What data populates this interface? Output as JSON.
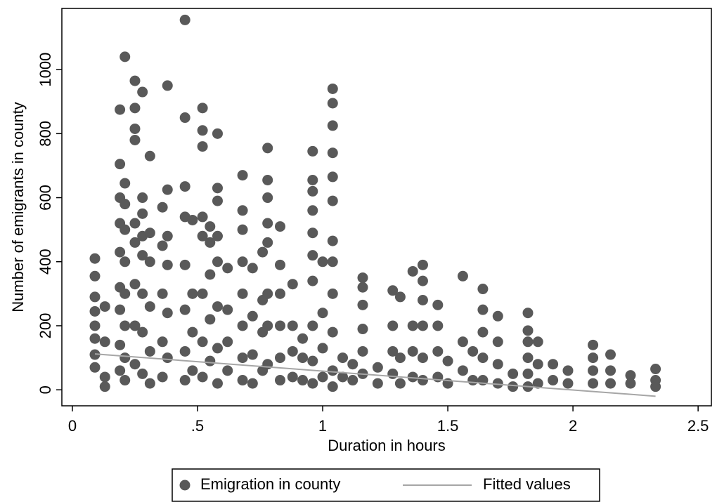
{
  "chart_data": {
    "type": "scatter",
    "xlabel": "Duration in hours",
    "ylabel": "Number of emigrants in county",
    "xlim": [
      -0.042,
      2.553
    ],
    "ylim": [
      -50,
      1191
    ],
    "xticks": [
      0,
      {
        "value": 0.5,
        "label": ".5"
      },
      1,
      {
        "value": 1.5,
        "label": "1.5"
      },
      2,
      {
        "value": 2.5,
        "label": "2.5"
      }
    ],
    "yticks": [
      0,
      200,
      400,
      600,
      800,
      1000
    ],
    "legend": "bottom",
    "series": [
      {
        "name": "Emigration in county",
        "color": "#595959",
        "mode": "markers",
        "x": [
          0.09,
          0.09,
          0.09,
          0.09,
          0.09,
          0.09,
          0.09,
          0.09,
          0.13,
          0.13,
          0.13,
          0.13,
          0.19,
          0.19,
          0.19,
          0.19,
          0.19,
          0.19,
          0.19,
          0.19,
          0.19,
          0.21,
          0.21,
          0.21,
          0.21,
          0.21,
          0.21,
          0.21,
          0.21,
          0.21,
          0.25,
          0.25,
          0.25,
          0.25,
          0.25,
          0.25,
          0.25,
          0.25,
          0.25,
          0.28,
          0.28,
          0.28,
          0.28,
          0.28,
          0.28,
          0.28,
          0.28,
          0.31,
          0.31,
          0.31,
          0.31,
          0.31,
          0.31,
          0.36,
          0.36,
          0.36,
          0.36,
          0.36,
          0.38,
          0.38,
          0.38,
          0.38,
          0.38,
          0.38,
          0.45,
          0.45,
          0.45,
          0.45,
          0.45,
          0.45,
          0.45,
          0.45,
          0.48,
          0.48,
          0.48,
          0.48,
          0.52,
          0.52,
          0.52,
          0.52,
          0.52,
          0.52,
          0.52,
          0.52,
          0.55,
          0.55,
          0.55,
          0.55,
          0.55,
          0.58,
          0.58,
          0.58,
          0.58,
          0.58,
          0.58,
          0.58,
          0.58,
          0.62,
          0.62,
          0.62,
          0.62,
          0.68,
          0.68,
          0.68,
          0.68,
          0.68,
          0.68,
          0.68,
          0.68,
          0.72,
          0.72,
          0.72,
          0.72,
          0.76,
          0.76,
          0.76,
          0.76,
          0.78,
          0.78,
          0.78,
          0.78,
          0.78,
          0.78,
          0.78,
          0.78,
          0.83,
          0.83,
          0.83,
          0.83,
          0.83,
          0.83,
          0.88,
          0.88,
          0.88,
          0.88,
          0.92,
          0.92,
          0.92,
          0.96,
          0.96,
          0.96,
          0.96,
          0.96,
          0.96,
          0.96,
          0.96,
          0.96,
          0.96,
          1.0,
          1.0,
          1.0,
          1.0,
          1.04,
          1.04,
          1.04,
          1.04,
          1.04,
          1.04,
          1.04,
          1.04,
          1.04,
          1.04,
          1.04,
          1.04,
          1.08,
          1.08,
          1.12,
          1.12,
          1.16,
          1.16,
          1.16,
          1.16,
          1.16,
          1.16,
          1.22,
          1.22,
          1.28,
          1.28,
          1.28,
          1.28,
          1.31,
          1.31,
          1.31,
          1.36,
          1.36,
          1.36,
          1.36,
          1.4,
          1.4,
          1.4,
          1.4,
          1.4,
          1.4,
          1.46,
          1.46,
          1.46,
          1.46,
          1.5,
          1.5,
          1.56,
          1.56,
          1.56,
          1.6,
          1.6,
          1.64,
          1.64,
          1.64,
          1.64,
          1.64,
          1.7,
          1.7,
          1.7,
          1.7,
          1.76,
          1.76,
          1.82,
          1.82,
          1.82,
          1.82,
          1.82,
          1.82,
          1.86,
          1.86,
          1.86,
          1.92,
          1.92,
          1.98,
          1.98,
          2.08,
          2.08,
          2.08,
          2.08,
          2.15,
          2.15,
          2.15,
          2.23,
          2.23,
          2.33,
          2.33,
          2.33
        ],
        "values": [
          410,
          355,
          290,
          245,
          200,
          160,
          110,
          70,
          260,
          150,
          40,
          10,
          875,
          705,
          600,
          520,
          430,
          320,
          250,
          140,
          60,
          1040,
          645,
          580,
          500,
          400,
          300,
          200,
          100,
          30,
          965,
          880,
          815,
          780,
          520,
          460,
          330,
          200,
          80,
          930,
          600,
          550,
          480,
          420,
          300,
          180,
          50,
          730,
          490,
          400,
          260,
          120,
          20,
          570,
          450,
          300,
          150,
          40,
          950,
          625,
          480,
          390,
          240,
          100,
          1155,
          850,
          635,
          540,
          390,
          250,
          120,
          30,
          530,
          300,
          180,
          60,
          880,
          810,
          760,
          540,
          480,
          300,
          150,
          40,
          510,
          460,
          360,
          220,
          90,
          800,
          630,
          590,
          480,
          400,
          260,
          130,
          20,
          380,
          250,
          150,
          60,
          670,
          560,
          500,
          400,
          300,
          200,
          100,
          30,
          380,
          230,
          110,
          20,
          430,
          280,
          180,
          60,
          755,
          655,
          600,
          520,
          460,
          300,
          200,
          80,
          510,
          390,
          300,
          200,
          100,
          30,
          330,
          200,
          120,
          40,
          160,
          100,
          30,
          745,
          655,
          620,
          560,
          490,
          420,
          340,
          200,
          90,
          20,
          400,
          240,
          130,
          40,
          940,
          895,
          825,
          740,
          665,
          590,
          465,
          400,
          300,
          180,
          60,
          10,
          100,
          40,
          80,
          30,
          350,
          320,
          265,
          190,
          120,
          50,
          70,
          20,
          310,
          200,
          120,
          50,
          290,
          100,
          20,
          370,
          200,
          120,
          40,
          390,
          340,
          280,
          200,
          100,
          30,
          265,
          200,
          120,
          40,
          90,
          20,
          355,
          150,
          60,
          120,
          30,
          315,
          250,
          180,
          100,
          30,
          230,
          150,
          80,
          20,
          50,
          10,
          240,
          185,
          150,
          100,
          50,
          10,
          150,
          80,
          20,
          80,
          30,
          60,
          20,
          140,
          100,
          60,
          20,
          110,
          60,
          20,
          45,
          20,
          65,
          30,
          10
        ]
      },
      {
        "name": "Fitted values",
        "color": "#a6a6a6",
        "mode": "line",
        "x": [
          0.09,
          2.33
        ],
        "values": [
          112,
          -20
        ]
      }
    ]
  }
}
